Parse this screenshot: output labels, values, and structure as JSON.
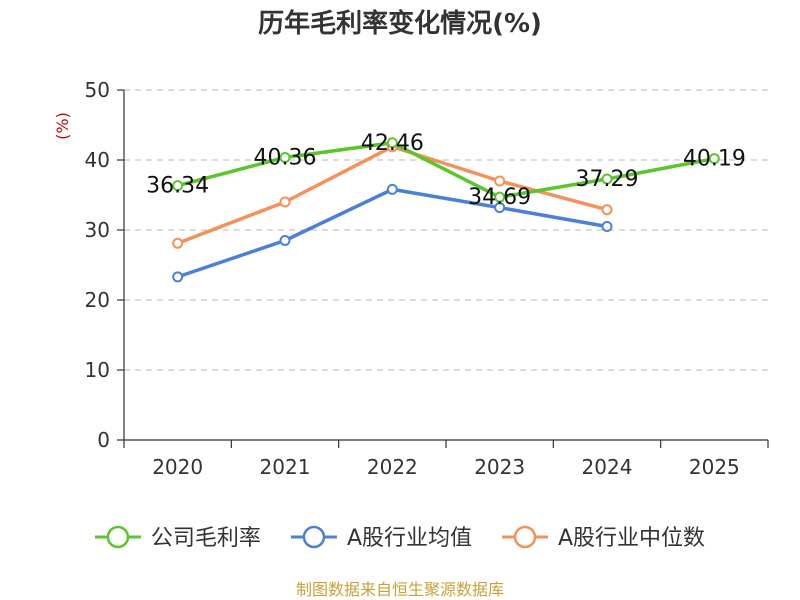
{
  "chart_data": {
    "type": "line",
    "title": "历年毛利率变化情况(%)",
    "ylabel": "(%)",
    "xlabel": "",
    "categories": [
      "2020",
      "2021",
      "2022",
      "2023",
      "2024",
      "2025"
    ],
    "ylim": [
      0,
      50
    ],
    "yticks": [
      0,
      10,
      20,
      30,
      40,
      50
    ],
    "grid": true,
    "legend_position": "bottom",
    "series": [
      {
        "name": "公司毛利率",
        "color": "#5cc52c",
        "values": [
          36.34,
          40.36,
          42.46,
          34.69,
          37.29,
          40.19
        ],
        "labels": [
          "36.34",
          "40.36",
          "42.46",
          "34.69",
          "37.29",
          "40.19"
        ]
      },
      {
        "name": "A股行业均值",
        "color": "#4a80d9",
        "values": [
          23.3,
          28.5,
          35.8,
          33.2,
          30.5,
          null
        ]
      },
      {
        "name": "A股行业中位数",
        "color": "#f59158",
        "values": [
          28.1,
          34.0,
          41.9,
          37.0,
          32.9,
          null
        ]
      }
    ]
  },
  "source": "制图数据来自恒生聚源数据库"
}
